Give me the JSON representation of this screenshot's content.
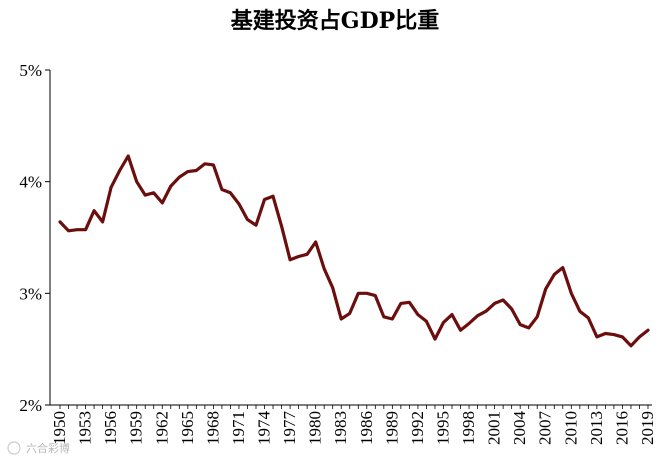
{
  "chart_data": {
    "type": "line",
    "title": "基建投资占GDP比重",
    "xlabel": "",
    "ylabel": "",
    "x_tick_labels": [
      "1950",
      "1953",
      "1956",
      "1959",
      "1962",
      "1965",
      "1968",
      "1971",
      "1974",
      "1977",
      "1980",
      "1983",
      "1986",
      "1989",
      "1992",
      "1995",
      "1998",
      "2001",
      "2004",
      "2007",
      "2010",
      "2013",
      "2016",
      "2019"
    ],
    "y_tick_labels": [
      "2%",
      "3%",
      "4%",
      "5%"
    ],
    "ylim": [
      2,
      5
    ],
    "y_ticks": [
      2,
      3,
      4,
      5
    ],
    "xlim": [
      1950,
      2019
    ],
    "grid": false,
    "line_color": "#6b0e0e",
    "series": [
      {
        "name": "",
        "x": [
          1950,
          1951,
          1952,
          1953,
          1954,
          1955,
          1956,
          1957,
          1958,
          1959,
          1960,
          1961,
          1962,
          1963,
          1964,
          1965,
          1966,
          1967,
          1968,
          1969,
          1970,
          1971,
          1972,
          1973,
          1974,
          1975,
          1976,
          1977,
          1978,
          1979,
          1980,
          1981,
          1982,
          1983,
          1984,
          1985,
          1986,
          1987,
          1988,
          1989,
          1990,
          1991,
          1992,
          1993,
          1994,
          1995,
          1996,
          1997,
          1998,
          1999,
          2000,
          2001,
          2002,
          2003,
          2004,
          2005,
          2006,
          2007,
          2008,
          2009,
          2010,
          2011,
          2012,
          2013,
          2014,
          2015,
          2016,
          2017,
          2018,
          2019
        ],
        "values": [
          3.64,
          3.56,
          3.57,
          3.57,
          3.74,
          3.64,
          3.95,
          4.1,
          4.23,
          4.0,
          3.88,
          3.9,
          3.81,
          3.96,
          4.04,
          4.09,
          4.1,
          4.16,
          4.15,
          3.93,
          3.9,
          3.8,
          3.66,
          3.61,
          3.84,
          3.87,
          3.6,
          3.3,
          3.33,
          3.35,
          3.46,
          3.22,
          3.05,
          2.77,
          2.82,
          3.0,
          3.0,
          2.98,
          2.79,
          2.77,
          2.91,
          2.92,
          2.81,
          2.75,
          2.59,
          2.74,
          2.81,
          2.67,
          2.73,
          2.8,
          2.84,
          2.91,
          2.94,
          2.86,
          2.72,
          2.69,
          2.79,
          3.04,
          3.17,
          3.23,
          3.0,
          2.84,
          2.78,
          2.61,
          2.64,
          2.63,
          2.61,
          2.53,
          2.61,
          2.67
        ]
      }
    ]
  },
  "watermark": {
    "text": "六合彩博"
  }
}
